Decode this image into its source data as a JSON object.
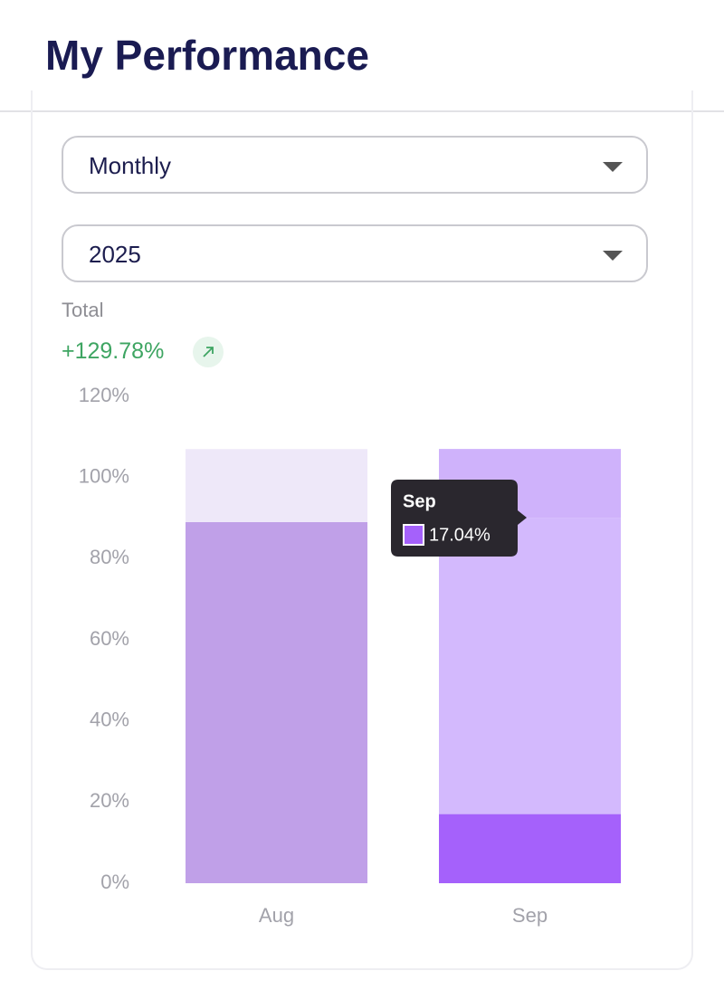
{
  "header": {
    "title": "My Performance"
  },
  "filters": {
    "period": "Monthly",
    "year": "2025"
  },
  "summary": {
    "label": "Total",
    "value": "+129.78%"
  },
  "chart_data": {
    "type": "stacked-bar",
    "categories": [
      "Aug",
      "Sep"
    ],
    "series": [
      {
        "values": [
          89,
          17.04
        ],
        "value_labels": [
          null,
          "17.04%"
        ],
        "colors": [
          "#c0a0e8",
          "#a561fb"
        ]
      },
      {
        "values": [
          18,
          73
        ],
        "colors": [
          "#eee8f9",
          "#d3b9fd"
        ]
      },
      {
        "values": [
          null,
          17
        ],
        "colors": [
          null,
          "#cfb2fb"
        ]
      }
    ],
    "ylim": [
      0,
      120
    ],
    "yticks": [
      {
        "value": 0,
        "label": "0%"
      },
      {
        "value": 20,
        "label": "20%"
      },
      {
        "value": 40,
        "label": "40%"
      },
      {
        "value": 60,
        "label": "60%"
      },
      {
        "value": 80,
        "label": "80%"
      },
      {
        "value": 100,
        "label": "100%"
      },
      {
        "value": 120,
        "label": "120%"
      }
    ],
    "tooltip": {
      "series": 0,
      "index": 1
    }
  }
}
